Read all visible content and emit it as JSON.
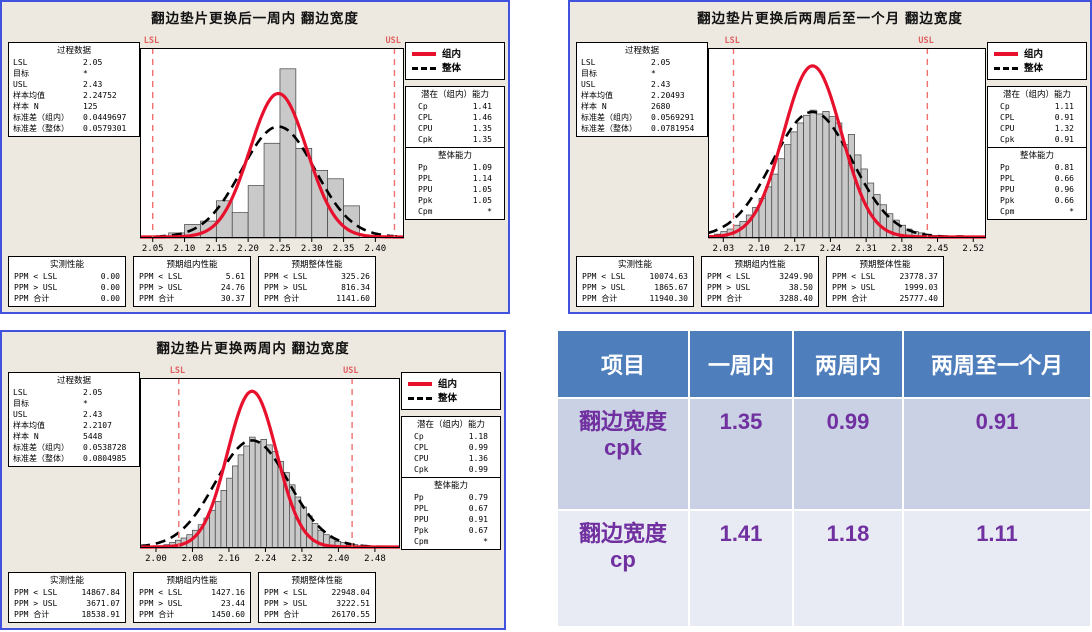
{
  "colors": {
    "panel_background": "#EDE9E0",
    "panel_border": "#4152DE",
    "bar_fill": "#C9C9C9",
    "bar_stroke": "#404040",
    "within_curve": "#E8112D",
    "overall_curve": "#000000",
    "limit_line": "#F07070",
    "limit_label": "#E06060",
    "table_header_bg": "#4F7EBC",
    "table_header_text": "#FFFFFF",
    "table_row1_bg": "#CBD1E4",
    "table_row2_bg": "#E8EAF4",
    "table_value_text": "#7030A0"
  },
  "chart_data": [
    {
      "type": "bar",
      "subtype": "process-capability-histogram",
      "title": "翻边垫片更换后一周内  翻边宽度",
      "legend": [
        {
          "label": "组内"
        },
        {
          "label": "整体"
        }
      ],
      "process_data": {
        "title": "过程数据",
        "rows": [
          [
            "LSL",
            "2.05"
          ],
          [
            "目标",
            "*"
          ],
          [
            "USL",
            "2.43"
          ],
          [
            "样本均值",
            "2.24752"
          ],
          [
            "样本 N",
            "125"
          ],
          [
            "标准差（组内）",
            "0.0449697"
          ],
          [
            "标准差（整体）",
            "0.0579301"
          ]
        ]
      },
      "capability_within": {
        "title": "潜在（组内）能力",
        "rows": [
          [
            "Cp",
            "1.41"
          ],
          [
            "CPL",
            "1.46"
          ],
          [
            "CPU",
            "1.35"
          ],
          [
            "Cpk",
            "1.35"
          ]
        ]
      },
      "capability_overall": {
        "title": "整体能力",
        "rows": [
          [
            "Pp",
            "1.09"
          ],
          [
            "PPL",
            "1.14"
          ],
          [
            "PPU",
            "1.05"
          ],
          [
            "Ppk",
            "1.05"
          ],
          [
            "Cpm",
            "*"
          ]
        ]
      },
      "performance_boxes": [
        {
          "title": "实测性能",
          "rows": [
            [
              "PPM < LSL",
              "0.00"
            ],
            [
              "PPM > USL",
              "0.00"
            ],
            [
              "PPM 合计",
              "0.00"
            ]
          ]
        },
        {
          "title": "预期组内性能",
          "rows": [
            [
              "PPM < LSL",
              "5.61"
            ],
            [
              "PPM > USL",
              "24.76"
            ],
            [
              "PPM 合计",
              "30.37"
            ]
          ]
        },
        {
          "title": "预期整体性能",
          "rows": [
            [
              "PPM < LSL",
              "325.26"
            ],
            [
              "PPM > USL",
              "816.34"
            ],
            [
              "PPM 合计",
              "1141.60"
            ]
          ]
        }
      ],
      "axis": {
        "x_min": 2.03,
        "x_max": 2.445,
        "tick_values": [
          2.05,
          2.1,
          2.15,
          2.2,
          2.25,
          2.3,
          2.35,
          2.4
        ],
        "tick_labels": [
          "2.05",
          "2.10",
          "2.15",
          "2.20",
          "2.25",
          "2.30",
          "2.35",
          "2.40"
        ]
      },
      "limits": {
        "lsl": 2.05,
        "usl": 2.43,
        "lsl_label": "LSL",
        "usl_label": "USL"
      },
      "bins": {
        "start": 2.075,
        "width": 0.025,
        "heights": [
          0.03,
          0.08,
          0.1,
          0.22,
          0.15,
          0.31,
          0.56,
          1.0,
          0.53,
          0.4,
          0.35,
          0.19
        ]
      },
      "curves": {
        "mean": 2.24752,
        "sd_within": 0.0449697,
        "sd_overall": 0.0579301,
        "within_peak": 0.78,
        "overall_peak": 0.6,
        "bar_peak": 0.9
      }
    },
    {
      "type": "bar",
      "subtype": "process-capability-histogram",
      "title": "翻边垫片更换后两周后至一个月  翻边宽度",
      "legend": [
        {
          "label": "组内"
        },
        {
          "label": "整体"
        }
      ],
      "process_data": {
        "title": "过程数据",
        "rows": [
          [
            "LSL",
            "2.05"
          ],
          [
            "目标",
            "*"
          ],
          [
            "USL",
            "2.43"
          ],
          [
            "样本均值",
            "2.20493"
          ],
          [
            "样本 N",
            "2680"
          ],
          [
            "标准差（组内）",
            "0.0569291"
          ],
          [
            "标准差（整体）",
            "0.0781954"
          ]
        ]
      },
      "capability_within": {
        "title": "潜在（组内）能力",
        "rows": [
          [
            "Cp",
            "1.11"
          ],
          [
            "CPL",
            "0.91"
          ],
          [
            "CPU",
            "1.32"
          ],
          [
            "Cpk",
            "0.91"
          ]
        ]
      },
      "capability_overall": {
        "title": "整体能力",
        "rows": [
          [
            "Pp",
            "0.81"
          ],
          [
            "PPL",
            "0.66"
          ],
          [
            "PPU",
            "0.96"
          ],
          [
            "Ppk",
            "0.66"
          ],
          [
            "Cpm",
            "*"
          ]
        ]
      },
      "performance_boxes": [
        {
          "title": "实测性能",
          "rows": [
            [
              "PPM < LSL",
              "10074.63"
            ],
            [
              "PPM > USL",
              "1865.67"
            ],
            [
              "PPM 合计",
              "11940.30"
            ]
          ]
        },
        {
          "title": "预期组内性能",
          "rows": [
            [
              "PPM < LSL",
              "3249.90"
            ],
            [
              "PPM > USL",
              "38.50"
            ],
            [
              "PPM 合计",
              "3288.40"
            ]
          ]
        },
        {
          "title": "预期整体性能",
          "rows": [
            [
              "PPM < LSL",
              "23778.37"
            ],
            [
              "PPM > USL",
              "1999.03"
            ],
            [
              "PPM 合计",
              "25777.40"
            ]
          ]
        }
      ],
      "axis": {
        "x_min": 2.0,
        "x_max": 2.545,
        "tick_values": [
          2.03,
          2.1,
          2.17,
          2.24,
          2.31,
          2.38,
          2.45,
          2.52
        ],
        "tick_labels": [
          "2.03",
          "2.10",
          "2.17",
          "2.24",
          "2.31",
          "2.38",
          "2.45",
          "2.52"
        ]
      },
      "limits": {
        "lsl": 2.05,
        "usl": 2.43,
        "lsl_label": "LSL",
        "usl_label": "USL"
      },
      "bins": {
        "start": 2.0,
        "width": 0.0125,
        "heights": [
          0.02,
          0.03,
          0.05,
          0.07,
          0.1,
          0.13,
          0.18,
          0.24,
          0.31,
          0.4,
          0.5,
          0.62,
          0.73,
          0.83,
          0.9,
          0.96,
          1.0,
          0.97,
          0.99,
          0.95,
          0.9,
          0.73,
          0.81,
          0.65,
          0.54,
          0.43,
          0.34,
          0.26,
          0.19,
          0.14,
          0.1,
          0.07,
          0.05,
          0.04,
          0.03,
          0.02,
          0.02,
          0.01,
          0.01,
          0.02
        ]
      },
      "curves": {
        "mean": 2.20493,
        "sd_within": 0.0569291,
        "sd_overall": 0.0781954,
        "within_peak": 0.93,
        "overall_peak": 0.68,
        "bar_peak": 0.68
      }
    },
    {
      "type": "bar",
      "subtype": "process-capability-histogram",
      "title": "翻边垫片更换两周内  翻边宽度",
      "legend": [
        {
          "label": "组内"
        },
        {
          "label": "整体"
        }
      ],
      "process_data": {
        "title": "过程数据",
        "rows": [
          [
            "LSL",
            "2.05"
          ],
          [
            "目标",
            "*"
          ],
          [
            "USL",
            "2.43"
          ],
          [
            "样本均值",
            "2.2107"
          ],
          [
            "样本 N",
            "5448"
          ],
          [
            "标准差（组内）",
            "0.0538728"
          ],
          [
            "标准差（整体）",
            "0.0804985"
          ]
        ]
      },
      "capability_within": {
        "title": "潜在（组内）能力",
        "rows": [
          [
            "Cp",
            "1.18"
          ],
          [
            "CPL",
            "0.99"
          ],
          [
            "CPU",
            "1.36"
          ],
          [
            "Cpk",
            "0.99"
          ]
        ]
      },
      "capability_overall": {
        "title": "整体能力",
        "rows": [
          [
            "Pp",
            "0.79"
          ],
          [
            "PPL",
            "0.67"
          ],
          [
            "PPU",
            "0.91"
          ],
          [
            "Ppk",
            "0.67"
          ],
          [
            "Cpm",
            "*"
          ]
        ]
      },
      "performance_boxes": [
        {
          "title": "实测性能",
          "rows": [
            [
              "PPM < LSL",
              "14867.84"
            ],
            [
              "PPM > USL",
              "3671.07"
            ],
            [
              "PPM 合计",
              "18538.91"
            ]
          ]
        },
        {
          "title": "预期组内性能",
          "rows": [
            [
              "PPM < LSL",
              "1427.16"
            ],
            [
              "PPM > USL",
              "23.44"
            ],
            [
              "PPM 合计",
              "1450.60"
            ]
          ]
        },
        {
          "title": "预期整体性能",
          "rows": [
            [
              "PPM < LSL",
              "22948.04"
            ],
            [
              "PPM > USL",
              "3222.51"
            ],
            [
              "PPM 合计",
              "26170.55"
            ]
          ]
        }
      ],
      "axis": {
        "x_min": 1.965,
        "x_max": 2.535,
        "tick_values": [
          2.0,
          2.08,
          2.16,
          2.24,
          2.32,
          2.4,
          2.48
        ],
        "tick_labels": [
          "2.00",
          "2.08",
          "2.16",
          "2.24",
          "2.32",
          "2.40",
          "2.48"
        ]
      },
      "limits": {
        "lsl": 2.05,
        "usl": 2.43,
        "lsl_label": "LSL",
        "usl_label": "USL"
      },
      "bins": {
        "start": 1.98,
        "width": 0.0125,
        "heights": [
          0.01,
          0.02,
          0.02,
          0.03,
          0.05,
          0.07,
          0.09,
          0.12,
          0.16,
          0.21,
          0.27,
          0.34,
          0.42,
          0.52,
          0.63,
          0.74,
          0.84,
          0.92,
          1.0,
          0.96,
          0.98,
          0.93,
          0.87,
          0.78,
          0.68,
          0.57,
          0.46,
          0.37,
          0.29,
          0.22,
          0.16,
          0.12,
          0.09,
          0.06,
          0.05,
          0.03,
          0.03,
          0.02,
          0.02,
          0.01,
          0.01,
          0.02
        ]
      },
      "curves": {
        "mean": 2.2107,
        "sd_within": 0.0538728,
        "sd_overall": 0.0804985,
        "within_peak": 0.95,
        "overall_peak": 0.65,
        "bar_peak": 0.66
      }
    }
  ],
  "table": {
    "headers": [
      "项目",
      "一周内",
      "两周内",
      "两周至一个月"
    ],
    "rows": [
      {
        "label": "翻边宽度",
        "sublabel": "cpk",
        "values": [
          "1.35",
          "0.99",
          "0.91"
        ]
      },
      {
        "label": "翻边宽度",
        "sublabel": "cp",
        "values": [
          "1.41",
          "1.18",
          "1.11"
        ]
      }
    ]
  }
}
